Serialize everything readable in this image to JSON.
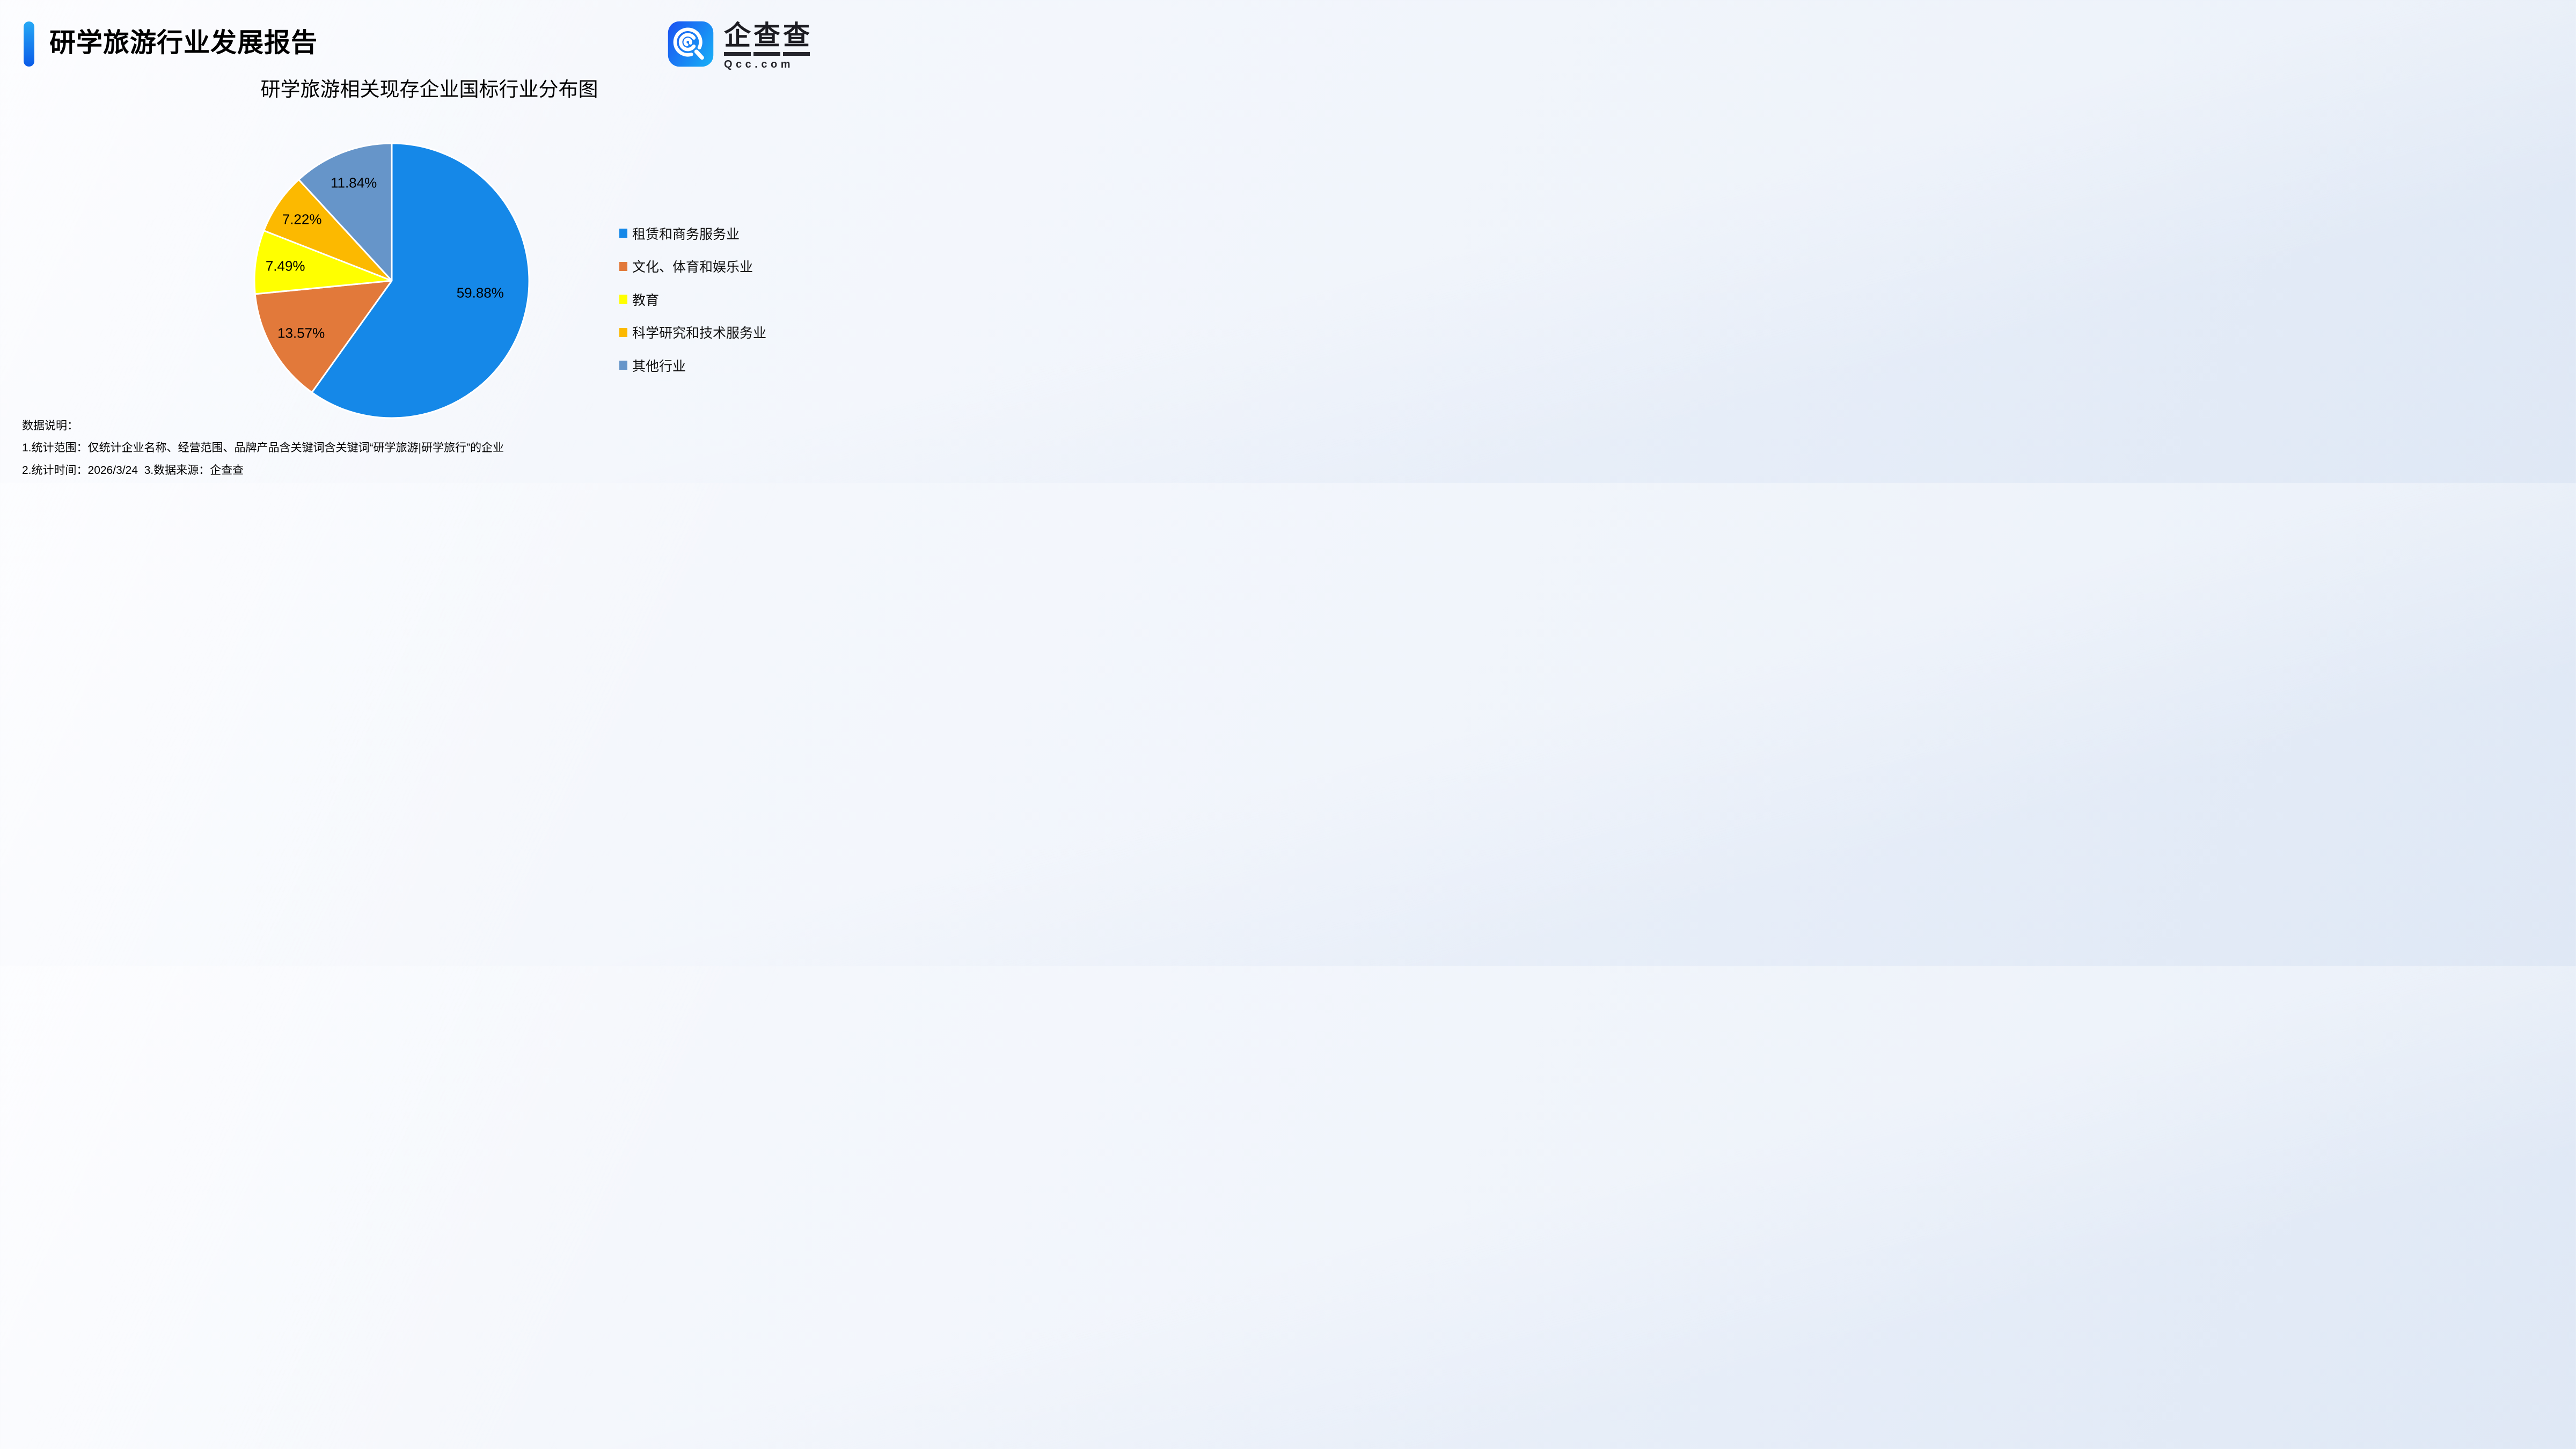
{
  "page": {
    "title": "研学旅游行业发展报告",
    "logo": {
      "brand": "企查查",
      "brand_chars": [
        "企",
        "查",
        "查"
      ],
      "domain": "Qcc.com"
    },
    "notes": {
      "heading": "数据说明：",
      "line1": "1.统计范围：仅统计企业名称、经营范围、品牌产品含关键词含关键词“研学旅游|研学旅行”的企业",
      "line2": "2.统计时间：2026/3/24  3.数据来源：企查查"
    }
  },
  "chart_data": {
    "type": "pie",
    "title": "研学旅游相关现存企业国标行业分布图",
    "categories": [
      "租赁和商务服务业",
      "文化、体育和娱乐业",
      "教育",
      "科学研究和技术服务业",
      "其他行业"
    ],
    "values": [
      59.88,
      13.57,
      7.49,
      7.22,
      11.84
    ],
    "labels": [
      "59.88%",
      "13.57%",
      "7.49%",
      "7.22%",
      "11.84%"
    ],
    "unit": "%",
    "colors": [
      "#1588e8",
      "#e2793a",
      "#ffff00",
      "#fcb900",
      "#6695c9"
    ],
    "slice_border_color": "#ffffff",
    "start_angle_deg": 0,
    "direction": "clockwise",
    "legend_position": "right",
    "accent_colors": {
      "title_bar_top": "#27a9f5",
      "title_bar_bottom": "#0a5be8",
      "logo_left": "#1b58f2",
      "logo_right": "#18aaf6"
    }
  }
}
